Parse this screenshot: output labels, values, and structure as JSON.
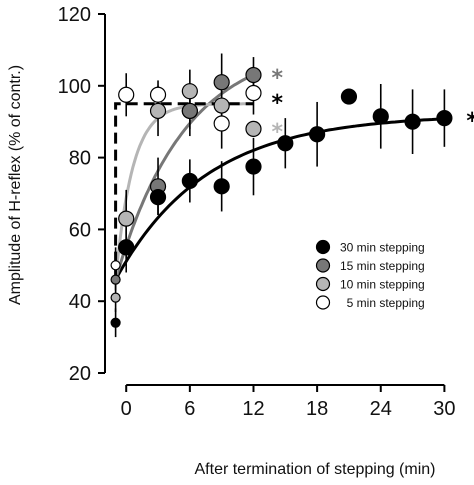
{
  "chart_data": {
    "type": "scatter",
    "title": "",
    "xlabel": "After termination of stepping (min)",
    "ylabel": "Amplitude of H-reflex (% of contr.)",
    "xlim": [
      -2,
      31
    ],
    "ylim": [
      20,
      120
    ],
    "x_ticks": [
      0,
      6,
      12,
      18,
      24,
      30
    ],
    "y_ticks": [
      20,
      40,
      60,
      80,
      100,
      120
    ],
    "grid": false,
    "legend_position": "right-middle",
    "series": [
      {
        "name": "30 min stepping",
        "marker_fill": "#000000",
        "significance": "*",
        "star_color": "#000000",
        "points": [
          {
            "x": -1,
            "y": 34,
            "err": 4
          },
          {
            "x": 0,
            "y": 55,
            "err": 5
          },
          {
            "x": 3,
            "y": 69,
            "err": 5
          },
          {
            "x": 6,
            "y": 73.5,
            "err": 6
          },
          {
            "x": 9,
            "y": 72,
            "err": 7
          },
          {
            "x": 12,
            "y": 77.5,
            "err": 8
          },
          {
            "x": 15,
            "y": 84,
            "err": 7
          },
          {
            "x": 18,
            "y": 86.5,
            "err": 9
          },
          {
            "x": 21,
            "y": 97,
            "err": 0
          },
          {
            "x": 24,
            "y": 91.5,
            "err": 9
          },
          {
            "x": 27,
            "y": 90,
            "err": 9
          },
          {
            "x": 30,
            "y": 91,
            "err": 8
          }
        ],
        "fit": {
          "type": "exponential",
          "start_x": -1,
          "end_x": 30,
          "y0": 46,
          "ymax": 92,
          "tau": 8.5
        }
      },
      {
        "name": "15 min stepping",
        "marker_fill": "#777777",
        "significance": "*",
        "star_color": "#777777",
        "points": [
          {
            "x": -1,
            "y": 46,
            "err": 3
          },
          {
            "x": 0,
            "y": 55,
            "err": 7
          },
          {
            "x": 3,
            "y": 72,
            "err": 8
          },
          {
            "x": 6,
            "y": 93,
            "err": 7
          },
          {
            "x": 9,
            "y": 101,
            "err": 8
          },
          {
            "x": 12,
            "y": 103,
            "err": 5
          }
        ],
        "fit": {
          "type": "exponential",
          "start_x": -1,
          "end_x": 12,
          "y0": 46,
          "ymax": 112,
          "tau": 6.5
        }
      },
      {
        "name": "10 min stepping",
        "marker_fill": "#b5b5b5",
        "significance": "*",
        "star_color": "#b5b5b5",
        "points": [
          {
            "x": -1,
            "y": 41,
            "err": 4
          },
          {
            "x": 0,
            "y": 63,
            "err": 8
          },
          {
            "x": 3,
            "y": 93,
            "err": 7
          },
          {
            "x": 6,
            "y": 98.5,
            "err": 6
          },
          {
            "x": 9,
            "y": 94.5,
            "err": 5
          },
          {
            "x": 12,
            "y": 88,
            "err": 0
          }
        ],
        "fit": {
          "type": "exponential",
          "start_x": -1,
          "end_x": 12,
          "y0": 46,
          "ymax": 95,
          "tau": 1.6
        }
      },
      {
        "name": "5 min stepping",
        "marker_fill": "#ffffff",
        "significance": "*",
        "star_color": "#000000",
        "points": [
          {
            "x": -1,
            "y": 50,
            "err": 5
          },
          {
            "x": 0,
            "y": 97.5,
            "err": 6
          },
          {
            "x": 3,
            "y": 97.5,
            "err": 4
          },
          {
            "x": 6,
            "y": 93,
            "err": 5
          },
          {
            "x": 9,
            "y": 89.5,
            "err": 7
          },
          {
            "x": 12,
            "y": 98,
            "err": 6
          }
        ],
        "fit": {
          "type": "step",
          "start_x": -1,
          "end_x": 12,
          "y0": 46,
          "level": 95
        }
      }
    ]
  }
}
